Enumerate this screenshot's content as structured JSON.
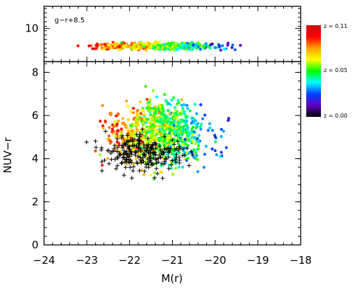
{
  "chart_data": {
    "type": "scatter",
    "xlabel": "M(r)",
    "ylabel": "NUV−r",
    "xlim": [
      -24,
      -18
    ],
    "x_ticks": [
      "−24",
      "−23",
      "−22",
      "−21",
      "−20",
      "−19",
      "−18"
    ],
    "panels": [
      {
        "annotation": "g−r+8.5",
        "ylim": [
          8.5,
          11
        ],
        "y_ticks": [
          "10"
        ],
        "y_tick_values": [
          10
        ]
      },
      {
        "ylim": [
          0,
          8.5
        ],
        "y_ticks": [
          "0",
          "2",
          "4",
          "6",
          "8"
        ],
        "y_tick_values": [
          0,
          2,
          4,
          6,
          8
        ]
      }
    ],
    "colorbar": {
      "labels": [
        "z = 0.11",
        "z = 0.05",
        "z = 0.00"
      ],
      "colormap": [
        "#c81414",
        "#ff0000",
        "#ffa000",
        "#ffff00",
        "#00ff00",
        "#00ffff",
        "#0040ff",
        "#6000c0",
        "#000000"
      ]
    },
    "colors": {
      "cross": "#000000",
      "axis": "#000000"
    },
    "point_groups": [
      {
        "marker": "dot",
        "n": 900,
        "x_mean": -21.3,
        "x_sd": 0.8,
        "y_mean": 5.2,
        "y_sd": 1.0,
        "z_range": [
          0.0,
          0.11
        ]
      },
      {
        "marker": "cross",
        "n": 230,
        "x_mean": -21.6,
        "x_sd": 0.7,
        "y_mean": 4.2,
        "y_sd": 0.6
      },
      {
        "marker": "dot",
        "n": 420,
        "panel": 0,
        "x_mean": -21.3,
        "x_sd": 1.0,
        "y_mean": 9.2,
        "y_sd": 0.12,
        "z_range": [
          0.0,
          0.11
        ]
      }
    ]
  }
}
